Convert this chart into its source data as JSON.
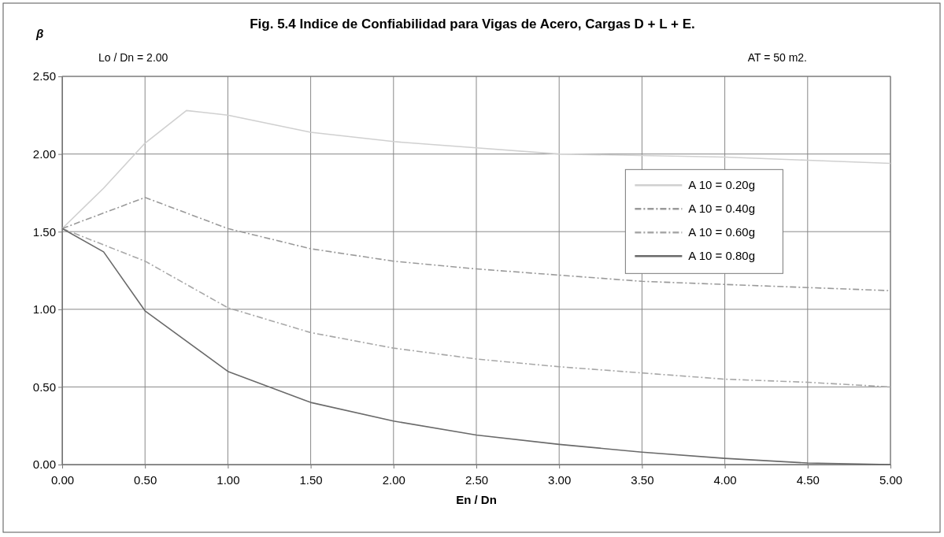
{
  "chart_data": {
    "type": "line",
    "title": "Fig. 5.4 Indice de Confiabilidad para Vigas de Acero, Cargas D + L + E.",
    "xlabel": "En / Dn",
    "ylabel": "β",
    "annotations": [
      "Lo / Dn = 2.00",
      "AT = 50 m2."
    ],
    "xlim": [
      0,
      5
    ],
    "ylim": [
      0,
      2.5
    ],
    "xticks": [
      {
        "value": 0,
        "label": "0.00"
      },
      {
        "value": 0.5,
        "label": "0.50"
      },
      {
        "value": 1,
        "label": "1.00"
      },
      {
        "value": 1.5,
        "label": "1.50"
      },
      {
        "value": 2,
        "label": "2.00"
      },
      {
        "value": 2.5,
        "label": "2.50"
      },
      {
        "value": 3,
        "label": "3.00"
      },
      {
        "value": 3.5,
        "label": "3.50"
      },
      {
        "value": 4,
        "label": "4.00"
      },
      {
        "value": 4.5,
        "label": "4.50"
      },
      {
        "value": 5,
        "label": "5.00"
      }
    ],
    "yticks": [
      {
        "value": 0,
        "label": "0.00"
      },
      {
        "value": 0.5,
        "label": "0.50"
      },
      {
        "value": 1,
        "label": "1.00"
      },
      {
        "value": 1.5,
        "label": "1.50"
      },
      {
        "value": 2,
        "label": "2.00"
      },
      {
        "value": 2.5,
        "label": "2.50"
      }
    ],
    "grid": true,
    "legend": "right",
    "series": [
      {
        "name": "A 10 = 0.20g",
        "color": "#d0d0d0",
        "line_style": "solid",
        "x": [
          0,
          0.25,
          0.5,
          0.75,
          1,
          1.5,
          2,
          2.5,
          3,
          3.5,
          4,
          4.5,
          5
        ],
        "values": [
          1.52,
          1.78,
          2.07,
          2.28,
          2.25,
          2.14,
          2.08,
          2.04,
          2.0,
          1.99,
          1.98,
          1.96,
          1.94
        ]
      },
      {
        "name": "A 10 = 0.40g",
        "color": "#9a9a9a",
        "line_style": "dashed",
        "x": [
          0,
          0.5,
          1,
          1.5,
          2,
          2.5,
          3,
          3.5,
          4,
          4.5,
          5
        ],
        "values": [
          1.52,
          1.72,
          1.52,
          1.39,
          1.31,
          1.26,
          1.22,
          1.18,
          1.16,
          1.14,
          1.12
        ]
      },
      {
        "name": "A 10 = 0.60g",
        "color": "#a8a8a8",
        "line_style": "dashed",
        "x": [
          0,
          0.5,
          1,
          1.5,
          2,
          2.5,
          3,
          3.5,
          4,
          4.5,
          5
        ],
        "values": [
          1.52,
          1.31,
          1.01,
          0.85,
          0.75,
          0.68,
          0.63,
          0.59,
          0.55,
          0.53,
          0.5
        ]
      },
      {
        "name": "A 10 = 0.80g",
        "color": "#6a6a6a",
        "line_style": "solid",
        "x": [
          0,
          0.25,
          0.5,
          1,
          1.5,
          2,
          2.5,
          3,
          3.5,
          4,
          4.5,
          5
        ],
        "values": [
          1.52,
          1.37,
          0.99,
          0.6,
          0.4,
          0.28,
          0.19,
          0.13,
          0.08,
          0.04,
          0.01,
          0.0
        ]
      }
    ]
  }
}
